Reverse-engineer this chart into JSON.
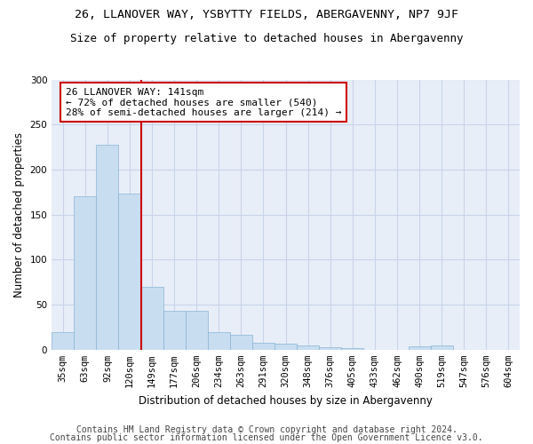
{
  "title1": "26, LLANOVER WAY, YSBYTTY FIELDS, ABERGAVENNY, NP7 9JF",
  "title2": "Size of property relative to detached houses in Abergavenny",
  "xlabel": "Distribution of detached houses by size in Abergavenny",
  "ylabel": "Number of detached properties",
  "categories": [
    "35sqm",
    "63sqm",
    "92sqm",
    "120sqm",
    "149sqm",
    "177sqm",
    "206sqm",
    "234sqm",
    "263sqm",
    "291sqm",
    "320sqm",
    "348sqm",
    "376sqm",
    "405sqm",
    "433sqm",
    "462sqm",
    "490sqm",
    "519sqm",
    "547sqm",
    "576sqm",
    "604sqm"
  ],
  "values": [
    20,
    170,
    228,
    173,
    70,
    43,
    43,
    20,
    17,
    8,
    7,
    5,
    3,
    2,
    0,
    0,
    4,
    5,
    0,
    0,
    0
  ],
  "bar_color": "#c8ddf0",
  "bar_edge_color": "#8ab4d4",
  "vline_color": "#cc0000",
  "annotation_text": "26 LLANOVER WAY: 141sqm\n← 72% of detached houses are smaller (540)\n28% of semi-detached houses are larger (214) →",
  "annotation_box_color": "#ffffff",
  "annotation_box_edge": "#cc0000",
  "ylim": [
    0,
    300
  ],
  "yticks": [
    0,
    50,
    100,
    150,
    200,
    250,
    300
  ],
  "footer1": "Contains HM Land Registry data © Crown copyright and database right 2024.",
  "footer2": "Contains public sector information licensed under the Open Government Licence v3.0.",
  "bg_color": "#ffffff",
  "plot_bg_color": "#e8eef8",
  "grid_color": "#c8d4e8",
  "title1_fontsize": 9.5,
  "title2_fontsize": 9,
  "axis_label_fontsize": 8.5,
  "tick_fontsize": 7.5,
  "footer_fontsize": 7,
  "annotation_fontsize": 8
}
